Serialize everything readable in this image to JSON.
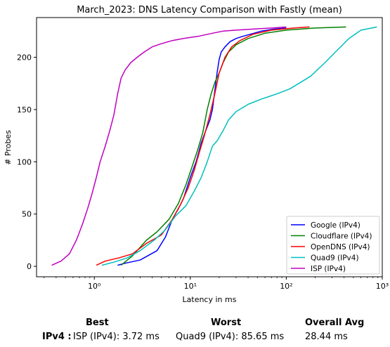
{
  "chart_data": {
    "type": "line",
    "title": "March_2023: DNS Latency Comparison with Fastly (mean)",
    "xlabel": "Latency in ms",
    "ylabel": "# Probes",
    "xscale": "log",
    "xlim": [
      0.25,
      1000
    ],
    "ylim": [
      -10,
      238
    ],
    "xticks": [
      1,
      10,
      100,
      1000
    ],
    "xtick_labels": [
      "10⁰",
      "10¹",
      "10²",
      "10³"
    ],
    "yticks": [
      0,
      50,
      100,
      150,
      200
    ],
    "grid": false,
    "legend_position": "lower right",
    "series": [
      {
        "name": "Google (IPv4)",
        "color": "#0000ff",
        "x": [
          1.75,
          2.1,
          3.0,
          4.5,
          5.5,
          6.5,
          7.5,
          8.5,
          10,
          11.5,
          13,
          14.5,
          16,
          17,
          18,
          19,
          20,
          21,
          23,
          26,
          30,
          35,
          42,
          55,
          75,
          100
        ],
        "y": [
          1,
          3,
          6,
          15,
          28,
          45,
          55,
          65,
          85,
          100,
          118,
          130,
          140,
          150,
          168,
          185,
          198,
          205,
          210,
          215,
          218,
          220,
          222,
          225,
          227,
          228
        ]
      },
      {
        "name": "Cloudflare (IPv4)",
        "color": "#008000",
        "x": [
          1.9,
          2.5,
          3.5,
          4.5,
          6,
          7.5,
          9,
          10.5,
          12,
          13.5,
          15,
          16.5,
          18,
          20,
          22,
          25,
          30,
          40,
          60,
          100,
          200,
          420
        ],
        "y": [
          1,
          10,
          25,
          33,
          45,
          60,
          78,
          96,
          112,
          128,
          150,
          165,
          176,
          185,
          195,
          205,
          212,
          218,
          223,
          226,
          228,
          229
        ]
      },
      {
        "name": "OpenDNS (IPv4)",
        "color": "#ff0000",
        "x": [
          1.05,
          1.3,
          1.8,
          2.5,
          3.5,
          5,
          6.5,
          8,
          9.5,
          11,
          12.5,
          14,
          16,
          18,
          20,
          23,
          27,
          33,
          45,
          70,
          120,
          175
        ],
        "y": [
          1,
          5,
          8,
          12,
          22,
          30,
          45,
          60,
          75,
          92,
          110,
          125,
          145,
          165,
          185,
          200,
          210,
          216,
          222,
          226,
          228,
          229
        ]
      },
      {
        "name": "Quad9 (IPv4)",
        "color": "#00bfbf",
        "x": [
          1.2,
          1.6,
          2.2,
          3.0,
          4.2,
          5.5,
          7,
          9,
          11,
          13,
          15,
          17,
          19,
          22,
          25,
          30,
          40,
          55,
          80,
          110,
          180,
          260,
          350,
          450,
          600,
          880
        ],
        "y": [
          1,
          4,
          8,
          15,
          25,
          35,
          48,
          58,
          72,
          85,
          100,
          115,
          120,
          130,
          140,
          148,
          155,
          160,
          165,
          170,
          182,
          196,
          208,
          218,
          226,
          229
        ]
      },
      {
        "name": "ISP (IPv4)",
        "color": "#bf00bf",
        "x": [
          0.36,
          0.45,
          0.55,
          0.65,
          0.75,
          0.85,
          0.95,
          1.05,
          1.15,
          1.3,
          1.45,
          1.6,
          1.75,
          1.9,
          2.1,
          2.4,
          2.8,
          3.3,
          4.0,
          5.0,
          6.5,
          8.5,
          12,
          17,
          22,
          30,
          45,
          70,
          100
        ],
        "y": [
          1,
          5,
          12,
          25,
          40,
          55,
          70,
          85,
          100,
          115,
          130,
          145,
          165,
          180,
          188,
          195,
          200,
          205,
          210,
          213,
          216,
          218,
          220,
          223,
          225,
          226,
          227,
          228,
          229
        ]
      }
    ]
  },
  "summary": {
    "best_header": "Best",
    "worst_header": "Worst",
    "avg_header": "Overall Avg",
    "row_label": "IPv4 :",
    "best_value": "ISP (IPv4): 3.72 ms",
    "worst_value": "Quad9 (IPv4): 85.65 ms",
    "avg_value": "28.44 ms"
  }
}
